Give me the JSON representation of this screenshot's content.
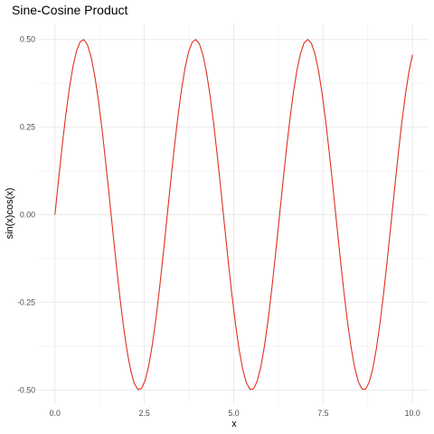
{
  "chart_data": {
    "type": "line",
    "title": "Sine-Cosine Product",
    "xlabel": "x",
    "ylabel": "sin(x)cos(x)",
    "xlim": [
      0,
      10
    ],
    "ylim": [
      -0.5,
      0.5
    ],
    "x_ticks": [
      0,
      2.5,
      5,
      7.5,
      10
    ],
    "x_tick_labels": [
      "0.0",
      "2.5",
      "5.0",
      "7.5",
      "10.0"
    ],
    "y_ticks": [
      -0.5,
      -0.25,
      0,
      0.25,
      0.5
    ],
    "y_tick_labels": [
      "-0.50",
      "-0.25",
      "0.00",
      "0.25",
      "0.50"
    ],
    "grid": true,
    "series": [
      {
        "color": "#e0301e",
        "function": "sin(x)cos(x)",
        "x_start": 0,
        "x_end": 10,
        "n_points": 100
      }
    ]
  }
}
